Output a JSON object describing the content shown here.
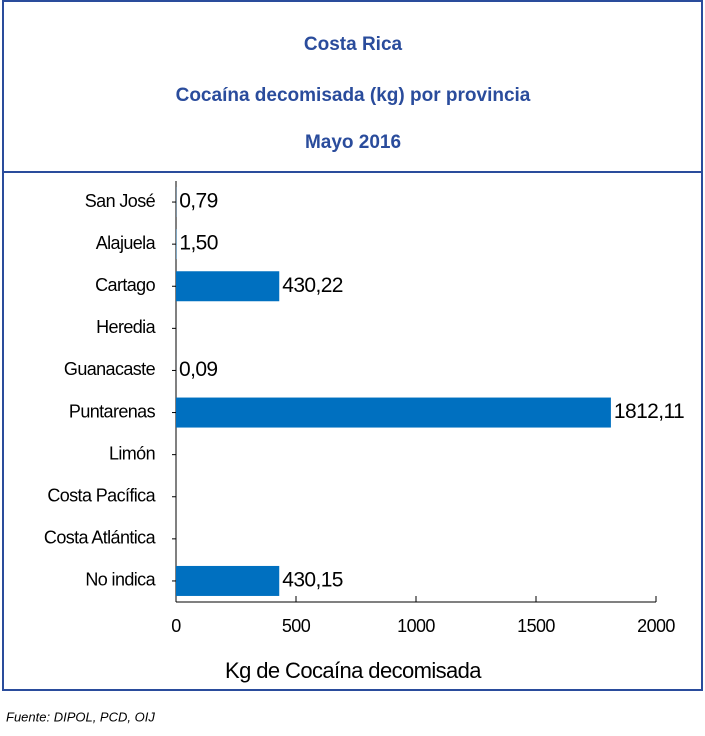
{
  "chart_data": {
    "type": "bar",
    "orientation": "horizontal",
    "title": "Costa Rica",
    "subtitle": "Cocaína decomisada (kg) por provincia",
    "period": "Mayo 2016",
    "categories": [
      "San José",
      "Alajuela",
      "Cartago",
      "Heredia",
      "Guanacaste",
      "Puntarenas",
      "Limón",
      "Costa Pacífica",
      "Costa Atlántica",
      "No indica"
    ],
    "values": [
      0.79,
      1.5,
      430.22,
      0,
      0.09,
      1812.11,
      0,
      0,
      0,
      430.15
    ],
    "value_labels": [
      "0,79",
      "1,50",
      "430,22",
      null,
      "0,09",
      "1812,11",
      null,
      null,
      null,
      "430,15"
    ],
    "color": "#0070c0",
    "xlim": [
      0,
      2000
    ],
    "xticks": [
      0,
      500,
      1000,
      1500,
      2000
    ],
    "xlabel": "Kg de Cocaína decomisada",
    "source": "Fuente: DIPOL, PCD, OIJ"
  }
}
